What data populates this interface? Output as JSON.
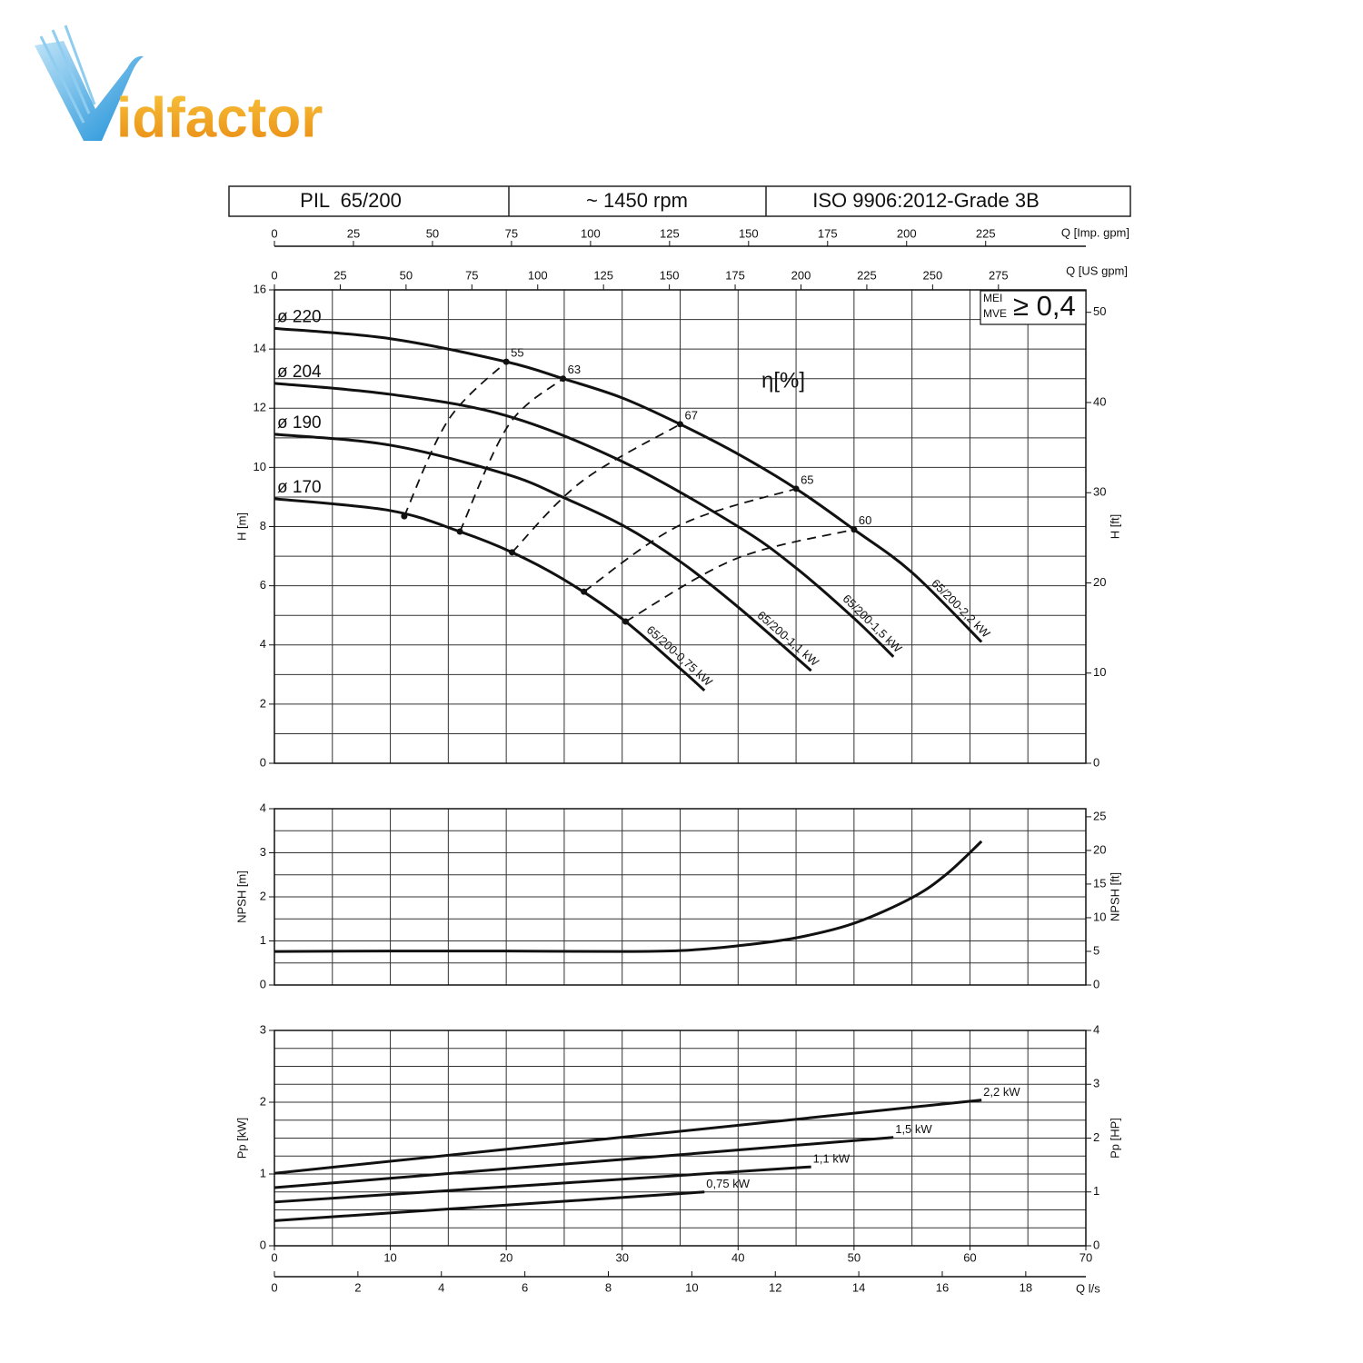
{
  "logo": "idfactor",
  "header": [
    "PIL  65/200",
    "~ 1450 rpm",
    "ISO 9906:2012-Grade 3B"
  ],
  "chart_data": [
    {
      "type": "line",
      "ylabel": "H [m]",
      "y2label": "H [ft]",
      "xlim": [
        0,
        70
      ],
      "xgrid": [
        0,
        5,
        10,
        15,
        20,
        25,
        30,
        35,
        40,
        45,
        50,
        55,
        60,
        65,
        70
      ],
      "ylim": [
        0,
        16
      ],
      "yticks": [
        0,
        2,
        4,
        6,
        8,
        10,
        12,
        14,
        16
      ],
      "ygrid": [
        0,
        1,
        2,
        3,
        4,
        5,
        6,
        7,
        8,
        9,
        10,
        11,
        12,
        13,
        14,
        15,
        16
      ],
      "y2lim": [
        0,
        52.49
      ],
      "y2ticks": [
        0,
        10,
        20,
        30,
        40,
        50
      ],
      "ximp_label": "Q [Imp. gpm]",
      "ximp_lim": [
        0,
        256.7
      ],
      "ximp_ticks": [
        0,
        25,
        50,
        75,
        100,
        125,
        150,
        175,
        200,
        225
      ],
      "xus_label": "Q [US gpm]",
      "xus_lim": [
        0,
        308.2
      ],
      "xus_ticks": [
        0,
        25,
        50,
        75,
        100,
        125,
        150,
        175,
        200,
        225,
        250,
        275
      ],
      "series": [
        {
          "name": "ø 220",
          "label": "65/200-2,2 kW",
          "color": "#111111",
          "x": [
            0,
            10,
            20,
            24.9,
            30,
            35,
            40,
            45,
            50,
            55,
            61
          ],
          "values": [
            14.7,
            14.35,
            13.57,
            13.0,
            12.35,
            11.46,
            10.45,
            9.28,
            7.9,
            6.45,
            4.1
          ]
        },
        {
          "name": "ø 204",
          "label": "65/200-1,5 kW",
          "color": "#111111",
          "x": [
            0,
            10,
            20,
            30,
            40,
            45,
            50,
            53.4
          ],
          "values": [
            12.84,
            12.47,
            11.75,
            10.2,
            8.0,
            6.6,
            4.9,
            3.6
          ]
        },
        {
          "name": "ø 190",
          "label": "65/200-1,1 kW",
          "color": "#111111",
          "x": [
            0,
            10,
            20,
            25,
            30,
            35,
            40,
            46.3
          ],
          "values": [
            11.12,
            10.75,
            9.77,
            8.97,
            8.05,
            6.82,
            5.28,
            3.13
          ]
        },
        {
          "name": "ø 170",
          "label": "65/200-0,75 kW",
          "color": "#111111",
          "x": [
            0,
            10,
            16,
            20.5,
            25,
            30,
            35,
            37.1
          ],
          "values": [
            8.94,
            8.54,
            7.83,
            7.13,
            6.2,
            4.88,
            3.2,
            2.46
          ]
        }
      ],
      "efficiency": {
        "label": "η[%]",
        "lines": [
          {
            "name": "55",
            "x": [
              11.2,
              15.0,
              20.0
            ],
            "values": [
              8.35,
              11.6,
              13.57
            ]
          },
          {
            "name": "63",
            "x": [
              16.0,
              20.2,
              24.9
            ],
            "values": [
              7.83,
              11.43,
              13.0
            ]
          },
          {
            "name": "67",
            "x": [
              20.5,
              26.5,
              35.0
            ],
            "values": [
              7.13,
              9.52,
              11.46
            ]
          },
          {
            "name": "65",
            "x": [
              26.7,
              35.0,
              45.0
            ],
            "values": [
              5.8,
              8.05,
              9.28
            ]
          },
          {
            "name": "60",
            "x": [
              30.3,
              39.8,
              50.0
            ],
            "values": [
              4.79,
              6.91,
              7.9
            ]
          }
        ]
      },
      "mei": {
        "labels": [
          "MEI",
          "MVE"
        ],
        "value_label": "≥ 0,4"
      }
    },
    {
      "type": "line",
      "ylabel": "NPSH [m]",
      "y2label": "NPSH [ft]",
      "xlim": [
        0,
        70
      ],
      "xgrid": [
        0,
        5,
        10,
        15,
        20,
        25,
        30,
        35,
        40,
        45,
        50,
        55,
        60,
        65,
        70
      ],
      "ylim": [
        0,
        4
      ],
      "yticks": [
        0,
        1,
        2,
        3,
        4
      ],
      "ygrid": [
        0,
        0.5,
        1,
        1.5,
        2,
        2.5,
        3,
        3.5,
        4
      ],
      "y2lim": [
        0,
        26.2
      ],
      "y2ticks": [
        0,
        5,
        10,
        15,
        20,
        25
      ],
      "series": [
        {
          "color": "#111111",
          "x": [
            0,
            10,
            20,
            30,
            35,
            40,
            45,
            50,
            55,
            58,
            61
          ],
          "values": [
            0.76,
            0.77,
            0.77,
            0.76,
            0.78,
            0.89,
            1.07,
            1.4,
            1.98,
            2.52,
            3.26
          ]
        }
      ]
    },
    {
      "type": "line",
      "ylabel": "Pp [kW]",
      "y2label": "Pp [HP]",
      "xlim": [
        0,
        70
      ],
      "xticks": [
        0,
        10,
        20,
        30,
        40,
        50,
        60,
        70
      ],
      "xgrid": [
        0,
        5,
        10,
        15,
        20,
        25,
        30,
        35,
        40,
        45,
        50,
        55,
        60,
        65,
        70
      ],
      "ylim": [
        0,
        3
      ],
      "yticks": [
        0,
        1,
        2,
        3
      ],
      "ygrid": [
        0,
        0.25,
        0.5,
        0.75,
        1,
        1.25,
        1.5,
        1.75,
        2,
        2.25,
        2.5,
        2.75,
        3
      ],
      "y2lim": [
        0,
        4
      ],
      "y2ticks": [
        0,
        1,
        2,
        3,
        4
      ],
      "x2label": "Q l/s",
      "x2lim": [
        0,
        19.44
      ],
      "x2ticks": [
        0,
        2,
        4,
        6,
        8,
        10,
        12,
        14,
        16,
        18
      ],
      "series": [
        {
          "name": "2,2 kW",
          "color": "#111111",
          "x": [
            0,
            61
          ],
          "values": [
            1.01,
            2.03
          ]
        },
        {
          "name": "1,5 kW",
          "color": "#111111",
          "x": [
            0,
            53.4
          ],
          "values": [
            0.81,
            1.51
          ]
        },
        {
          "name": "1,1 kW",
          "color": "#111111",
          "x": [
            0,
            46.3
          ],
          "values": [
            0.61,
            1.1
          ]
        },
        {
          "name": "0,75 kW",
          "color": "#111111",
          "x": [
            0,
            37.1
          ],
          "values": [
            0.35,
            0.75
          ]
        }
      ]
    }
  ]
}
